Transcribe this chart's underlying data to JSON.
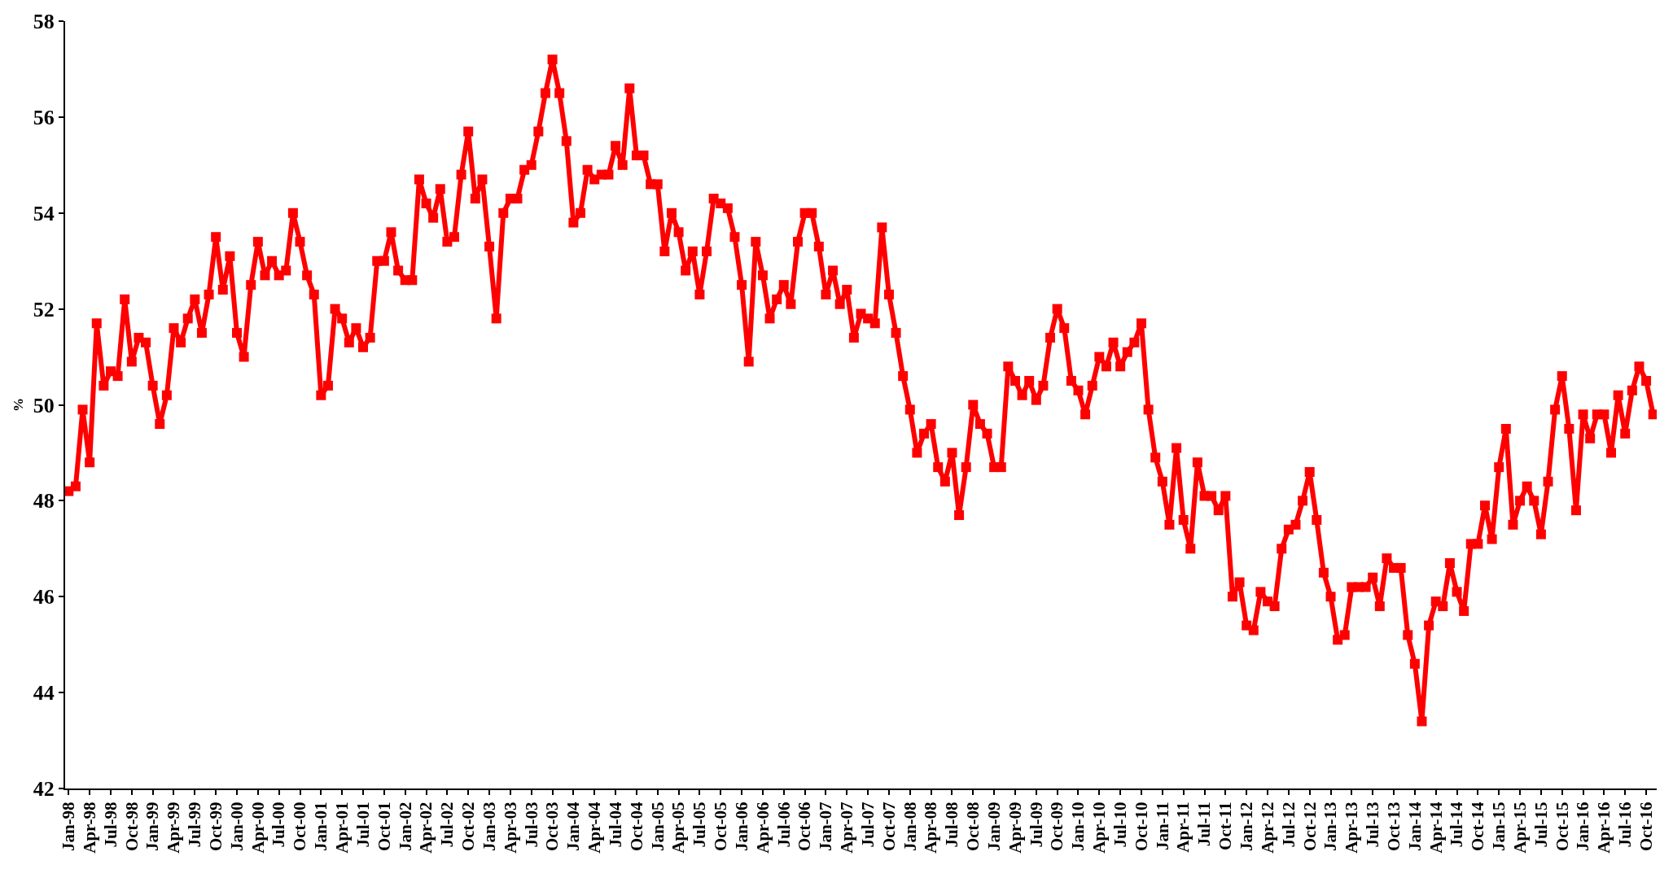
{
  "chart_data": {
    "type": "line",
    "ylabel": "%",
    "categories": [
      "Jan-98",
      null,
      null,
      "Apr-98",
      null,
      null,
      "Jul-98",
      null,
      null,
      "Oct-98",
      null,
      null,
      "Jan-99",
      null,
      null,
      "Apr-99",
      null,
      null,
      "Jul-99",
      null,
      null,
      "Oct-99",
      null,
      null,
      "Jan-00",
      null,
      null,
      "Apr-00",
      null,
      null,
      "Jul-00",
      null,
      null,
      "Oct-00",
      null,
      null,
      "Jan-01",
      null,
      null,
      "Apr-01",
      null,
      null,
      "Jul-01",
      null,
      null,
      "Oct-01",
      null,
      null,
      "Jan-02",
      null,
      null,
      "Apr-02",
      null,
      null,
      "Jul-02",
      null,
      null,
      "Oct-02",
      null,
      null,
      "Jan-03",
      null,
      null,
      "Apr-03",
      null,
      null,
      "Jul-03",
      null,
      null,
      "Oct-03",
      null,
      null,
      "Jan-04",
      null,
      null,
      "Apr-04",
      null,
      null,
      "Jul-04",
      null,
      null,
      "Oct-04",
      null,
      null,
      "Jan-05",
      null,
      null,
      "Apr-05",
      null,
      null,
      "Jul-05",
      null,
      null,
      "Oct-05",
      null,
      null,
      "Jan-06",
      null,
      null,
      "Apr-06",
      null,
      null,
      "Jul-06",
      null,
      null,
      "Oct-06",
      null,
      null,
      "Jan-07",
      null,
      null,
      "Apr-07",
      null,
      null,
      "Jul-07",
      null,
      null,
      "Oct-07",
      null,
      null,
      "Jan-08",
      null,
      null,
      "Apr-08",
      null,
      null,
      "Jul-08",
      null,
      null,
      "Oct-08",
      null,
      null,
      "Jan-09",
      null,
      null,
      "Apr-09",
      null,
      null,
      "Jul-09",
      null,
      null,
      "Oct-09",
      null,
      null,
      "Jan-10",
      null,
      null,
      "Apr-10",
      null,
      null,
      "Jul-10",
      null,
      null,
      "Oct-10",
      null,
      null,
      "Jan-11",
      null,
      null,
      "Apr-11",
      null,
      null,
      "Jul-11",
      null,
      null,
      "Oct-11",
      null,
      null,
      "Jan-12",
      null,
      null,
      "Apr-12",
      null,
      null,
      "Jul-12",
      null,
      null,
      "Oct-12",
      null,
      null,
      "Jan-13",
      null,
      null,
      "Apr-13",
      null,
      null,
      "Jul-13",
      null,
      null,
      "Oct-13",
      null,
      null,
      "Jan-14",
      null,
      null,
      "Apr-14",
      null,
      null,
      "Jul-14",
      null,
      null,
      "Oct-14",
      null,
      null,
      "Jan-15",
      null,
      null,
      "Apr-15",
      null,
      null,
      "Jul-15",
      null,
      null,
      "Oct-15",
      null,
      null,
      "Jan-16",
      null,
      null,
      "Apr-16",
      null,
      null,
      "Jul-16",
      null,
      null,
      "Oct-16",
      null
    ],
    "series": [
      {
        "color": "#ff0000",
        "values": [
          48.2,
          48.3,
          49.9,
          48.8,
          51.7,
          50.4,
          50.7,
          50.6,
          52.2,
          50.9,
          51.4,
          51.3,
          50.4,
          49.6,
          50.2,
          51.6,
          51.3,
          51.8,
          52.2,
          51.5,
          52.3,
          53.5,
          52.4,
          53.1,
          51.5,
          51.0,
          52.5,
          53.4,
          52.7,
          53.0,
          52.7,
          52.8,
          54.0,
          53.4,
          52.7,
          52.3,
          50.2,
          50.4,
          52.0,
          51.8,
          51.3,
          51.6,
          51.2,
          51.4,
          53.0,
          53.0,
          53.6,
          52.8,
          52.6,
          52.6,
          54.7,
          54.2,
          53.9,
          54.5,
          53.4,
          53.5,
          54.8,
          55.7,
          54.3,
          54.7,
          53.3,
          51.8,
          54.0,
          54.3,
          54.3,
          54.9,
          55.0,
          55.7,
          56.5,
          57.2,
          56.5,
          55.5,
          53.8,
          54.0,
          54.9,
          54.7,
          54.8,
          54.8,
          55.4,
          55.0,
          56.6,
          55.2,
          55.2,
          54.6,
          54.6,
          53.2,
          54.0,
          53.6,
          52.8,
          53.2,
          52.3,
          53.2,
          54.3,
          54.2,
          54.1,
          53.5,
          52.5,
          50.9,
          53.4,
          52.7,
          51.8,
          52.2,
          52.5,
          52.1,
          53.4,
          54.0,
          54.0,
          53.3,
          52.3,
          52.8,
          52.1,
          52.4,
          51.4,
          51.9,
          51.8,
          51.7,
          53.7,
          52.3,
          51.5,
          50.6,
          49.9,
          49.0,
          49.4,
          49.6,
          48.7,
          48.4,
          49.0,
          47.7,
          48.7,
          50.0,
          49.6,
          49.4,
          48.7,
          48.7,
          50.8,
          50.5,
          50.2,
          50.5,
          50.1,
          50.4,
          51.4,
          52.0,
          51.6,
          50.5,
          50.3,
          49.8,
          50.4,
          51.0,
          50.8,
          51.3,
          50.8,
          51.1,
          51.3,
          51.7,
          49.9,
          48.9,
          48.4,
          47.5,
          49.1,
          47.6,
          47.0,
          48.8,
          48.1,
          48.1,
          47.8,
          48.1,
          46.0,
          46.3,
          45.4,
          45.3,
          46.1,
          45.9,
          45.8,
          47.0,
          47.4,
          47.5,
          48.0,
          48.6,
          47.6,
          46.5,
          46.0,
          45.1,
          45.2,
          46.2,
          46.2,
          46.2,
          46.4,
          45.8,
          46.8,
          46.6,
          46.6,
          45.2,
          44.6,
          43.4,
          45.4,
          45.9,
          45.8,
          46.7,
          46.1,
          45.7,
          47.1,
          47.1,
          47.9,
          47.2,
          48.7,
          49.5,
          47.5,
          48.0,
          48.3,
          48.0,
          47.3,
          48.4,
          49.9,
          50.6,
          49.5,
          47.8,
          49.8,
          49.3,
          49.8,
          49.8,
          49.0,
          50.2,
          49.4,
          50.3,
          50.8,
          50.5,
          49.8
        ]
      }
    ],
    "ylim": [
      42,
      58
    ],
    "yticks": [
      42,
      44,
      46,
      48,
      50,
      52,
      54,
      56,
      58
    ],
    "marker": "square",
    "line_style": "solid"
  }
}
